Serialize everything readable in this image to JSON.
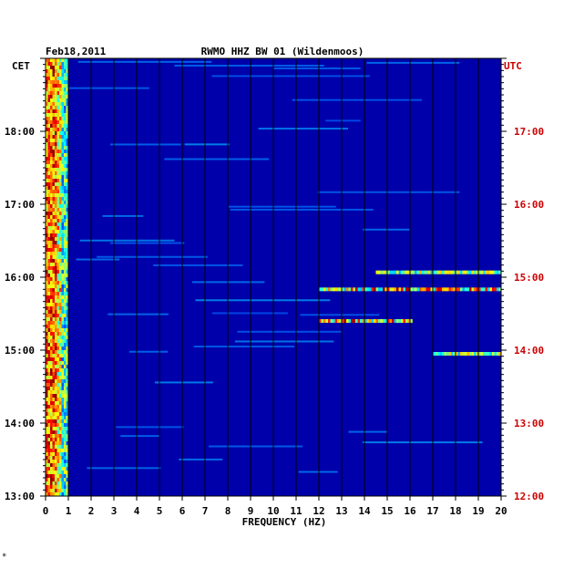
{
  "header": {
    "date": "Feb18,2011",
    "station": "RWMO HHZ BW 01 (Wildenmoos)"
  },
  "colors": {
    "background": "#0000aa",
    "grid": "#000000",
    "utc_label": "#cc0000",
    "cet_label": "#000000"
  },
  "chart_data": {
    "type": "heatmap",
    "title": "RWMO HHZ BW 01 (Wildenmoos)",
    "xlabel": "FREQUENCY (HZ)",
    "x_range": [
      0,
      20
    ],
    "x_ticks": [
      "0",
      "1",
      "2",
      "3",
      "4",
      "5",
      "6",
      "7",
      "8",
      "9",
      "10",
      "11",
      "12",
      "13",
      "14",
      "15",
      "16",
      "17",
      "18",
      "19",
      "20"
    ],
    "left_axis_label": "CET",
    "right_axis_label": "UTC",
    "left_ticks": [
      "18:00",
      "17:00",
      "16:00",
      "15:00",
      "14:00",
      "13:00"
    ],
    "right_ticks": [
      "17:00",
      "16:00",
      "15:00",
      "14:00",
      "13:00",
      "12:00"
    ],
    "time_range_cet": [
      "13:00",
      "19:00"
    ],
    "colormap": "jet",
    "features": [
      {
        "name": "low-frequency band",
        "freq_hz": [
          0,
          0.8
        ],
        "time_cet": [
          "13:00",
          "19:00"
        ],
        "intensity": "high"
      },
      {
        "name": "band 15:50 CET",
        "freq_hz": [
          12,
          20
        ],
        "time_cet": "15:50",
        "intensity": "high"
      },
      {
        "name": "band 15:24 CET",
        "freq_hz": [
          12,
          16
        ],
        "time_cet": "15:24",
        "intensity": "high"
      },
      {
        "name": "band 16:04 CET",
        "freq_hz": [
          14.5,
          20
        ],
        "time_cet": "16:04",
        "intensity": "medium"
      },
      {
        "name": "band 14:57 CET",
        "freq_hz": [
          17,
          20
        ],
        "time_cet": "14:57",
        "intensity": "medium"
      }
    ]
  },
  "footnote": "*"
}
